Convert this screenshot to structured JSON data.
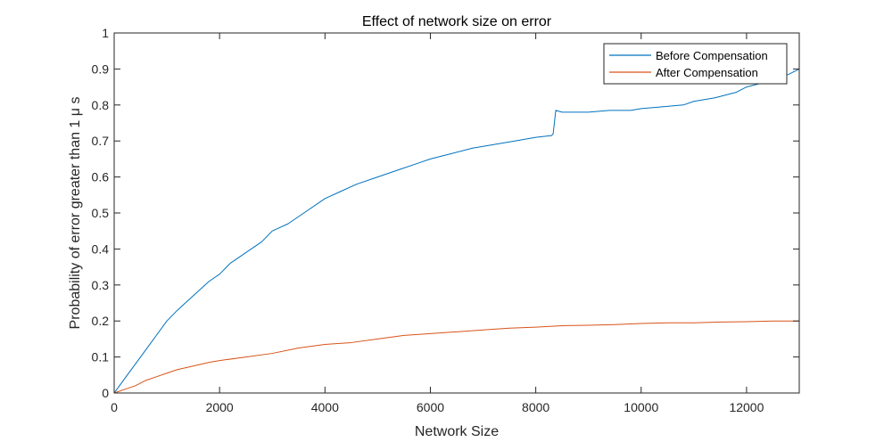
{
  "chart_data": {
    "type": "line",
    "title": "Effect of network size on error",
    "xlabel": "Network Size",
    "ylabel": "Probability of error greater than 1 μ s",
    "xlim": [
      0,
      13000
    ],
    "ylim": [
      0,
      1
    ],
    "xticks": [
      0,
      2000,
      4000,
      6000,
      8000,
      10000,
      12000
    ],
    "xtick_labels": [
      "0",
      "2000",
      "4000",
      "6000",
      "8000",
      "10000",
      "12000"
    ],
    "yticks": [
      0,
      0.1,
      0.2,
      0.3,
      0.4,
      0.5,
      0.6,
      0.7,
      0.8,
      0.9,
      1
    ],
    "ytick_labels": [
      "0",
      "0.1",
      "0.2",
      "0.3",
      "0.4",
      "0.5",
      "0.6",
      "0.7",
      "0.8",
      "0.9",
      "1"
    ],
    "grid": false,
    "legend_position": "top-right",
    "series": [
      {
        "name": "Before Compensation",
        "color": "#0072BD",
        "x": [
          0,
          100,
          200,
          400,
          600,
          800,
          1000,
          1200,
          1500,
          1800,
          2000,
          2200,
          2500,
          2800,
          3000,
          3300,
          3600,
          4000,
          4300,
          4600,
          5000,
          5400,
          5800,
          6000,
          6400,
          6800,
          7200,
          7600,
          8000,
          8300,
          8330,
          8380,
          8500,
          8800,
          9000,
          9400,
          9800,
          10000,
          10400,
          10800,
          11000,
          11400,
          11800,
          12000,
          12400,
          12800,
          13000
        ],
        "y": [
          0.0,
          0.02,
          0.04,
          0.08,
          0.12,
          0.16,
          0.2,
          0.23,
          0.27,
          0.31,
          0.33,
          0.36,
          0.39,
          0.42,
          0.45,
          0.47,
          0.5,
          0.54,
          0.56,
          0.58,
          0.6,
          0.62,
          0.64,
          0.65,
          0.665,
          0.68,
          0.69,
          0.7,
          0.71,
          0.715,
          0.72,
          0.785,
          0.78,
          0.78,
          0.78,
          0.785,
          0.785,
          0.79,
          0.795,
          0.8,
          0.81,
          0.82,
          0.835,
          0.85,
          0.865,
          0.885,
          0.9
        ]
      },
      {
        "name": "After Compensation",
        "color": "#D95319",
        "x": [
          0,
          100,
          200,
          400,
          600,
          800,
          1000,
          1200,
          1500,
          1800,
          2000,
          2500,
          3000,
          3500,
          4000,
          4500,
          5000,
          5500,
          6000,
          6500,
          7000,
          7500,
          8000,
          8500,
          9000,
          9500,
          10000,
          10500,
          11000,
          11500,
          12000,
          12500,
          13000
        ],
        "y": [
          0.0,
          0.005,
          0.01,
          0.02,
          0.035,
          0.045,
          0.055,
          0.065,
          0.075,
          0.085,
          0.09,
          0.1,
          0.11,
          0.125,
          0.135,
          0.14,
          0.15,
          0.16,
          0.165,
          0.17,
          0.175,
          0.18,
          0.183,
          0.187,
          0.188,
          0.19,
          0.193,
          0.195,
          0.195,
          0.197,
          0.198,
          0.2,
          0.2
        ]
      }
    ]
  }
}
